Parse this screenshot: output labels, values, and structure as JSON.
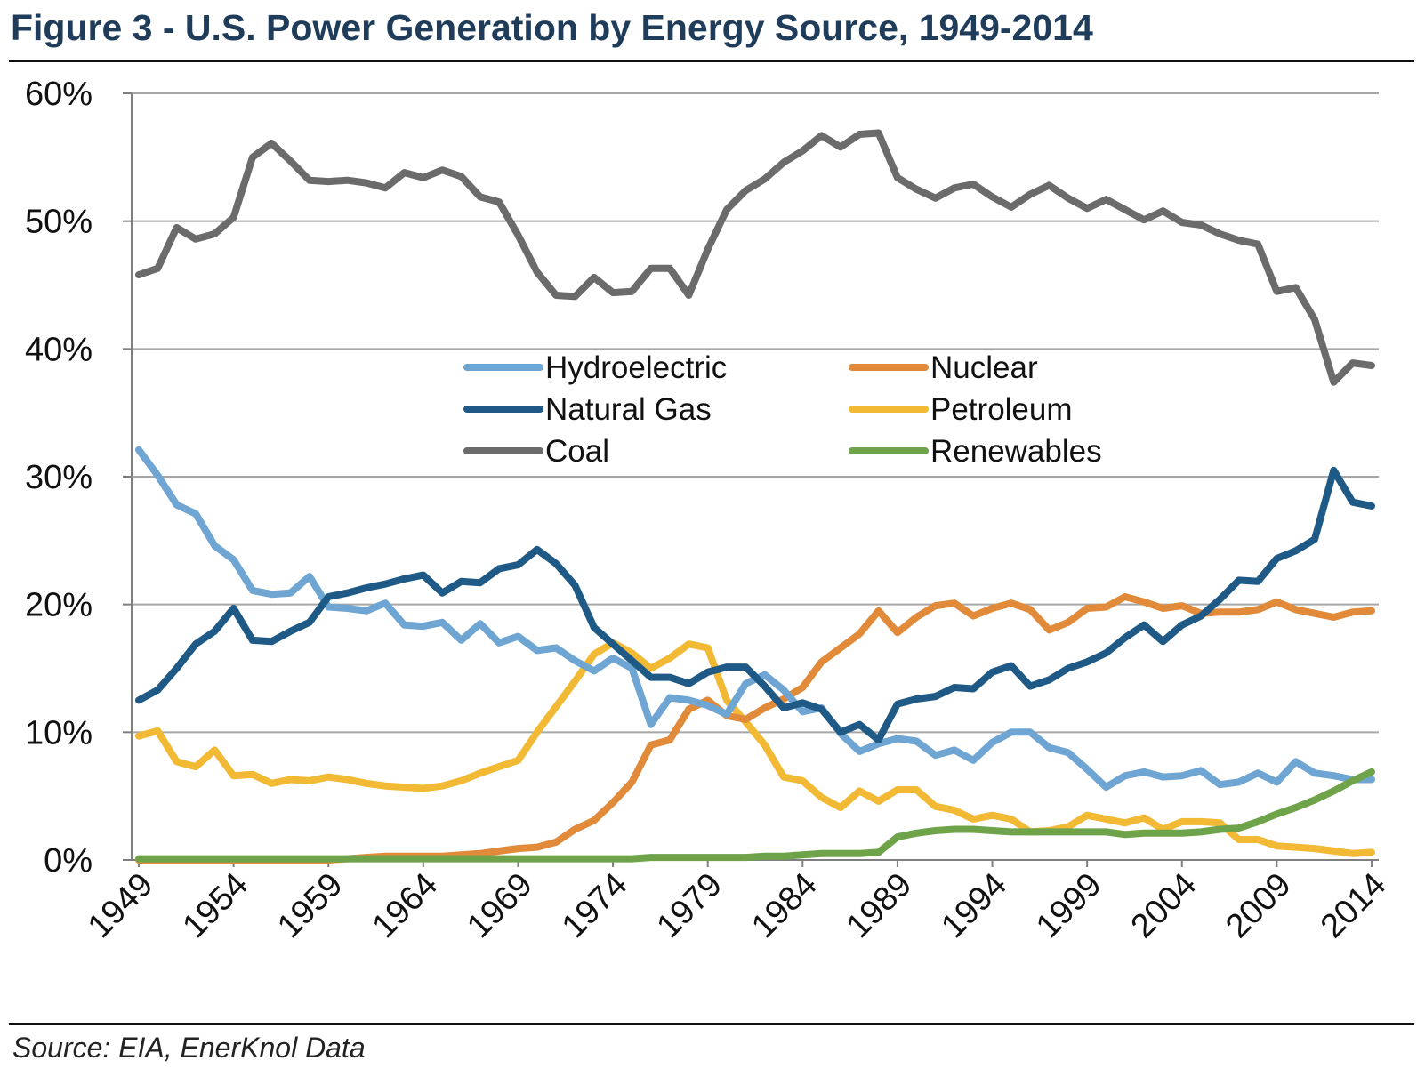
{
  "title": "Figure 3 - U.S. Power Generation by Energy Source, 1949-2014",
  "source": "Source: EIA, EnerKnol Data",
  "chart_data": {
    "type": "line",
    "ylim": [
      0,
      60
    ],
    "yticks": [
      "0%",
      "10%",
      "20%",
      "30%",
      "40%",
      "50%",
      "60%"
    ],
    "xticks": [
      "1949",
      "1954",
      "1959",
      "1964",
      "1969",
      "1974",
      "1979",
      "1984",
      "1989",
      "1994",
      "1999",
      "2004",
      "2009",
      "2014"
    ],
    "grid": true,
    "legend_position": "center",
    "x": [
      1949,
      1950,
      1951,
      1952,
      1953,
      1954,
      1955,
      1956,
      1957,
      1958,
      1959,
      1960,
      1961,
      1962,
      1963,
      1964,
      1965,
      1966,
      1967,
      1968,
      1969,
      1970,
      1971,
      1972,
      1973,
      1974,
      1975,
      1976,
      1977,
      1978,
      1979,
      1980,
      1981,
      1982,
      1983,
      1984,
      1985,
      1986,
      1987,
      1988,
      1989,
      1990,
      1991,
      1992,
      1993,
      1994,
      1995,
      1996,
      1997,
      1998,
      1999,
      2000,
      2001,
      2002,
      2003,
      2004,
      2005,
      2006,
      2007,
      2008,
      2009,
      2010,
      2011,
      2012,
      2013,
      2014
    ],
    "series": [
      {
        "name": "Hydroelectric",
        "color": "#6fa5d2",
        "values": [
          32.1,
          30.1,
          27.8,
          27.1,
          24.6,
          23.5,
          21.1,
          20.8,
          20.9,
          22.2,
          19.8,
          19.7,
          19.5,
          20.1,
          18.4,
          18.3,
          18.6,
          17.2,
          18.5,
          17.0,
          17.5,
          16.4,
          16.6,
          15.6,
          14.8,
          15.8,
          15.0,
          10.6,
          12.7,
          12.5,
          12.1,
          11.4,
          13.8,
          14.5,
          13.3,
          11.6,
          11.9,
          9.9,
          8.5,
          9.1,
          9.5,
          9.3,
          8.2,
          8.6,
          7.8,
          9.2,
          10.0,
          10.0,
          8.8,
          8.4,
          7.1,
          5.7,
          6.6,
          6.9,
          6.5,
          6.6,
          7.0,
          5.9,
          6.1,
          6.8,
          6.1,
          7.7,
          6.8,
          6.6,
          6.3,
          6.3
        ]
      },
      {
        "name": "Nuclear",
        "color": "#e08a3a",
        "values": [
          0,
          0,
          0,
          0,
          0,
          0,
          0,
          0,
          0,
          0,
          0,
          0.1,
          0.2,
          0.3,
          0.3,
          0.3,
          0.3,
          0.4,
          0.5,
          0.7,
          0.9,
          1.0,
          1.4,
          2.4,
          3.1,
          4.5,
          6.1,
          9.0,
          9.4,
          11.8,
          12.5,
          11.3,
          11.0,
          11.9,
          12.6,
          13.5,
          15.5,
          16.6,
          17.7,
          19.5,
          17.8,
          19.0,
          19.9,
          20.1,
          19.1,
          19.7,
          20.1,
          19.6,
          18.0,
          18.6,
          19.7,
          19.8,
          20.6,
          20.2,
          19.7,
          19.9,
          19.3,
          19.4,
          19.4,
          19.6,
          20.2,
          19.6,
          19.3,
          19.0,
          19.4,
          19.5
        ]
      },
      {
        "name": "Natural Gas",
        "color": "#1f5a86",
        "values": [
          12.5,
          13.3,
          15.0,
          16.9,
          17.9,
          19.7,
          17.2,
          17.1,
          17.9,
          18.6,
          20.6,
          20.9,
          21.3,
          21.6,
          22.0,
          22.3,
          20.9,
          21.8,
          21.7,
          22.8,
          23.1,
          24.3,
          23.2,
          21.5,
          18.2,
          16.9,
          15.6,
          14.3,
          14.3,
          13.8,
          14.7,
          15.1,
          15.1,
          13.6,
          11.9,
          12.3,
          11.8,
          10.0,
          10.6,
          9.4,
          12.2,
          12.6,
          12.8,
          13.5,
          13.4,
          14.7,
          15.2,
          13.6,
          14.1,
          15.0,
          15.5,
          16.2,
          17.4,
          18.4,
          17.1,
          18.4,
          19.1,
          20.4,
          21.9,
          21.8,
          23.6,
          24.2,
          25.1,
          30.5,
          28.0,
          27.7
        ]
      },
      {
        "name": "Petroleum",
        "color": "#f1b934",
        "values": [
          9.7,
          10.1,
          7.7,
          7.3,
          8.6,
          6.6,
          6.7,
          6.0,
          6.3,
          6.2,
          6.5,
          6.3,
          6.0,
          5.8,
          5.7,
          5.6,
          5.8,
          6.2,
          6.8,
          7.3,
          7.8,
          10.0,
          12.0,
          14.0,
          16.1,
          17.0,
          16.2,
          15.0,
          15.8,
          16.9,
          16.6,
          12.5,
          10.8,
          9.0,
          6.5,
          6.2,
          4.9,
          4.1,
          5.4,
          4.6,
          5.5,
          5.5,
          4.2,
          3.9,
          3.2,
          3.5,
          3.2,
          2.2,
          2.3,
          2.6,
          3.5,
          3.2,
          2.9,
          3.3,
          2.4,
          3.0,
          3.0,
          2.9,
          1.6,
          1.6,
          1.1,
          1.0,
          0.9,
          0.7,
          0.5,
          0.6
        ]
      },
      {
        "name": "Coal",
        "color": "#6b6b6b",
        "values": [
          45.8,
          46.3,
          49.5,
          48.6,
          49.0,
          50.3,
          55.0,
          56.1,
          54.7,
          53.2,
          53.1,
          53.2,
          53.0,
          52.6,
          53.8,
          53.4,
          54.0,
          53.5,
          51.9,
          51.5,
          48.9,
          46.0,
          44.2,
          44.1,
          45.6,
          44.4,
          44.5,
          46.3,
          46.3,
          44.2,
          47.8,
          50.9,
          52.4,
          53.3,
          54.6,
          55.5,
          56.7,
          55.8,
          56.8,
          56.9,
          53.4,
          52.5,
          51.8,
          52.6,
          52.9,
          51.9,
          51.1,
          52.1,
          52.8,
          51.8,
          51.0,
          51.7,
          50.9,
          50.1,
          50.8,
          49.9,
          49.7,
          49.0,
          48.5,
          48.2,
          44.5,
          44.8,
          42.3,
          37.4,
          38.9,
          38.7
        ]
      },
      {
        "name": "Renewables",
        "color": "#6ea34a",
        "values": [
          0.1,
          0.1,
          0.1,
          0.1,
          0.1,
          0.1,
          0.1,
          0.1,
          0.1,
          0.1,
          0.1,
          0.1,
          0.1,
          0.1,
          0.1,
          0.1,
          0.1,
          0.1,
          0.1,
          0.1,
          0.1,
          0.1,
          0.1,
          0.1,
          0.1,
          0.1,
          0.1,
          0.2,
          0.2,
          0.2,
          0.2,
          0.2,
          0.2,
          0.3,
          0.3,
          0.4,
          0.5,
          0.5,
          0.5,
          0.6,
          1.8,
          2.1,
          2.3,
          2.4,
          2.4,
          2.3,
          2.2,
          2.2,
          2.2,
          2.2,
          2.2,
          2.2,
          2.0,
          2.1,
          2.1,
          2.1,
          2.2,
          2.4,
          2.5,
          3.0,
          3.6,
          4.1,
          4.7,
          5.4,
          6.2,
          6.9
        ]
      }
    ]
  }
}
